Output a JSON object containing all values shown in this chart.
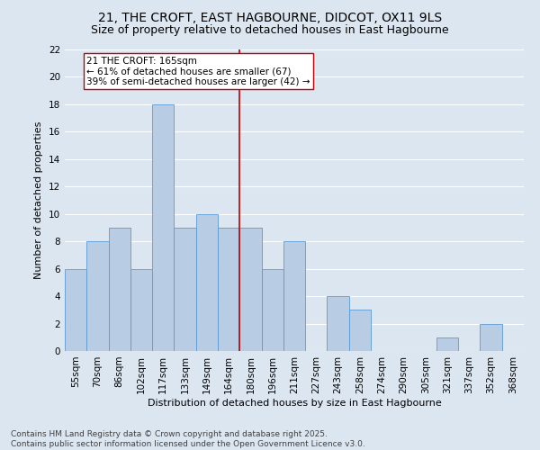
{
  "title": "21, THE CROFT, EAST HAGBOURNE, DIDCOT, OX11 9LS",
  "subtitle": "Size of property relative to detached houses in East Hagbourne",
  "xlabel": "Distribution of detached houses by size in East Hagbourne",
  "ylabel": "Number of detached properties",
  "bins": [
    "55sqm",
    "70sqm",
    "86sqm",
    "102sqm",
    "117sqm",
    "133sqm",
    "149sqm",
    "164sqm",
    "180sqm",
    "196sqm",
    "211sqm",
    "227sqm",
    "243sqm",
    "258sqm",
    "274sqm",
    "290sqm",
    "305sqm",
    "321sqm",
    "337sqm",
    "352sqm",
    "368sqm"
  ],
  "values": [
    6,
    8,
    9,
    6,
    18,
    9,
    10,
    9,
    9,
    6,
    8,
    0,
    4,
    3,
    0,
    0,
    0,
    1,
    0,
    2,
    0
  ],
  "bar_color": "#b8cce4",
  "bar_edge_color": "#5b9bd5",
  "background_color": "#dce6f1",
  "grid_color": "#ffffff",
  "vline_color": "#c00000",
  "annotation_text": "21 THE CROFT: 165sqm\n← 61% of detached houses are smaller (67)\n39% of semi-detached houses are larger (42) →",
  "annotation_box_color": "#ffffff",
  "annotation_box_edge": "#c00000",
  "ylim": [
    0,
    22
  ],
  "yticks": [
    0,
    2,
    4,
    6,
    8,
    10,
    12,
    14,
    16,
    18,
    20,
    22
  ],
  "footer": "Contains HM Land Registry data © Crown copyright and database right 2025.\nContains public sector information licensed under the Open Government Licence v3.0.",
  "title_fontsize": 10,
  "subtitle_fontsize": 9,
  "xlabel_fontsize": 8,
  "ylabel_fontsize": 8,
  "tick_fontsize": 7.5,
  "annotation_fontsize": 7.5,
  "footer_fontsize": 6.5
}
